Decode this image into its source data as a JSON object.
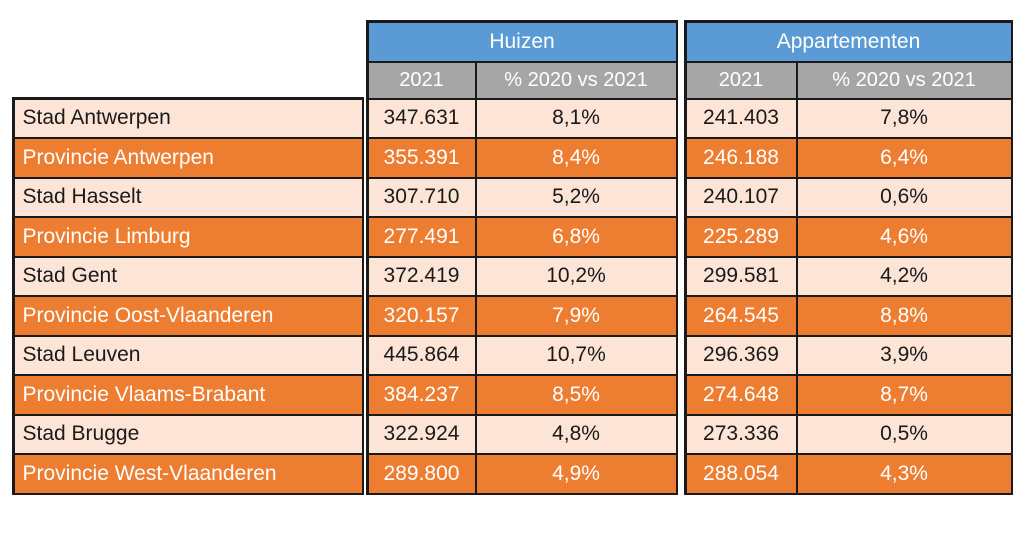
{
  "theme": {
    "blue": "#5B9BD5",
    "gray": "#A6A6A6",
    "orange": "#ED7D31",
    "peach": "#FCE4D6",
    "line": "#1a1a1a"
  },
  "table": {
    "groups": [
      {
        "label": "Huizen"
      },
      {
        "label": "Appartementen"
      }
    ],
    "sub": {
      "year": "2021",
      "pct": "% 2020 vs 2021"
    },
    "rows": [
      {
        "label": "Stad Antwerpen",
        "h2021": "347.631",
        "hpct": "8,1%",
        "a2021": "241.403",
        "apct": "7,8%"
      },
      {
        "label": "Provincie Antwerpen",
        "h2021": "355.391",
        "hpct": "8,4%",
        "a2021": "246.188",
        "apct": "6,4%"
      },
      {
        "label": "Stad Hasselt",
        "h2021": "307.710",
        "hpct": "5,2%",
        "a2021": "240.107",
        "apct": "0,6%"
      },
      {
        "label": "Provincie Limburg",
        "h2021": "277.491",
        "hpct": "6,8%",
        "a2021": "225.289",
        "apct": "4,6%"
      },
      {
        "label": "Stad Gent",
        "h2021": "372.419",
        "hpct": "10,2%",
        "a2021": "299.581",
        "apct": "4,2%"
      },
      {
        "label": "Provincie Oost-Vlaanderen",
        "h2021": "320.157",
        "hpct": "7,9%",
        "a2021": "264.545",
        "apct": "8,8%"
      },
      {
        "label": "Stad Leuven",
        "h2021": "445.864",
        "hpct": "10,7%",
        "a2021": "296.369",
        "apct": "3,9%"
      },
      {
        "label": "Provincie Vlaams-Brabant",
        "h2021": "384.237",
        "hpct": "8,5%",
        "a2021": "274.648",
        "apct": "8,7%"
      },
      {
        "label": "Stad Brugge",
        "h2021": "322.924",
        "hpct": "4,8%",
        "a2021": "273.336",
        "apct": "0,5%"
      },
      {
        "label": "Provincie West-Vlaanderen",
        "h2021": "289.800",
        "hpct": "4,9%",
        "a2021": "288.054",
        "apct": "4,3%"
      }
    ]
  },
  "chart_data": {
    "type": "table",
    "columns": [
      "",
      "Huizen 2021",
      "Huizen % 2020 vs 2021",
      "Appartementen 2021",
      "Appartementen % 2020 vs 2021"
    ],
    "rows": [
      [
        "Stad Antwerpen",
        347631,
        "8,1%",
        241403,
        "7,8%"
      ],
      [
        "Provincie Antwerpen",
        355391,
        "8,4%",
        246188,
        "6,4%"
      ],
      [
        "Stad Hasselt",
        307710,
        "5,2%",
        240107,
        "0,6%"
      ],
      [
        "Provincie Limburg",
        277491,
        "6,8%",
        225289,
        "4,6%"
      ],
      [
        "Stad Gent",
        372419,
        "10,2%",
        299581,
        "4,2%"
      ],
      [
        "Provincie Oost-Vlaanderen",
        320157,
        "7,9%",
        264545,
        "8,8%"
      ],
      [
        "Stad Leuven",
        445864,
        "10,7%",
        296369,
        "3,9%"
      ],
      [
        "Provincie Vlaams-Brabant",
        384237,
        "8,5%",
        274648,
        "8,7%"
      ],
      [
        "Stad Brugge",
        322924,
        "4,8%",
        273336,
        "0,5%"
      ],
      [
        "Provincie West-Vlaanderen",
        289800,
        "4,9%",
        288054,
        "4,3%"
      ]
    ],
    "pct_values": {
      "huizen": [
        8.1,
        8.4,
        5.2,
        6.8,
        10.2,
        7.9,
        10.7,
        8.5,
        4.8,
        4.9
      ],
      "appartementen": [
        7.8,
        6.4,
        0.6,
        4.6,
        4.2,
        8.8,
        3.9,
        8.7,
        0.5,
        4.3
      ]
    },
    "layout": {
      "striped_rows": "alternating peach/orange",
      "header_colors": {
        "group": "#5B9BD5",
        "sub": "#A6A6A6"
      }
    }
  }
}
